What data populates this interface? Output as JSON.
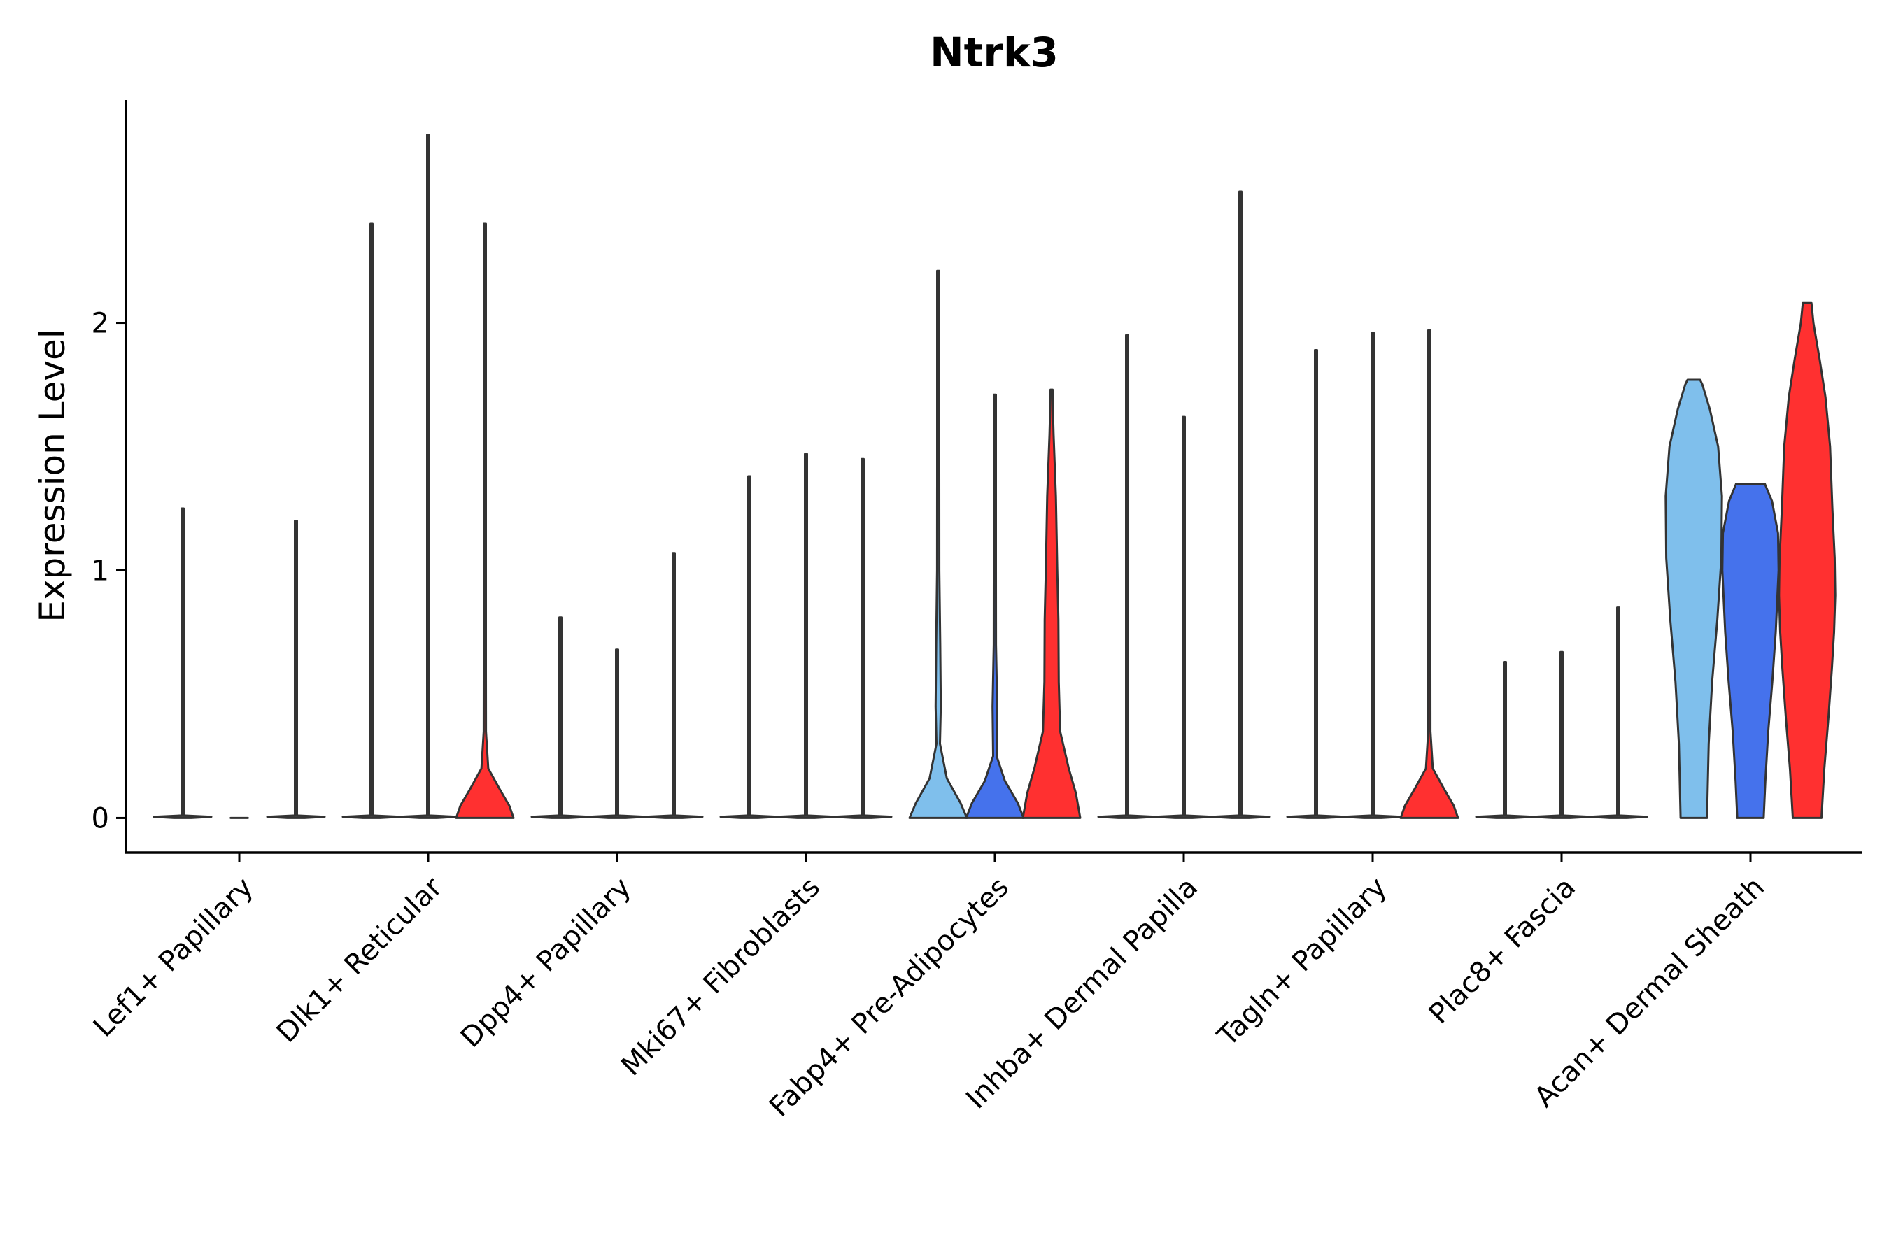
{
  "chart_data": {
    "type": "violin",
    "title": "Ntrk3",
    "xlabel": "",
    "ylabel": "Expression Level",
    "ylim": [
      -0.14,
      2.9
    ],
    "yticks": [
      0,
      1,
      2
    ],
    "ytick_labels": [
      "0",
      "1",
      "2"
    ],
    "categories": [
      "Lef1+ Papillary",
      "Dlk1+ Reticular",
      "Dpp4+ Papillary",
      "Mki67+ Fibroblasts",
      "Fabp4+ Pre-Adipocytes",
      "Inhba+ Dermal Papilla",
      "Tagln+ Papillary",
      "Plac8+ Fascia",
      "Acan+ Dermal Sheath"
    ],
    "series_colors": [
      "#7fbfec",
      "#4572ec",
      "#ff3030"
    ],
    "series": [
      {
        "name": "group-1",
        "color": "#7fbfec",
        "max_values": [
          1.25,
          2.4,
          0.81,
          1.38,
          2.21,
          1.95,
          1.89,
          0.63,
          1.77
        ]
      },
      {
        "name": "group-2",
        "color": "#4572ec",
        "max_values": [
          0.0,
          2.76,
          0.68,
          1.47,
          1.71,
          1.62,
          1.96,
          0.67,
          1.35
        ]
      },
      {
        "name": "group-3",
        "color": "#ff3030",
        "max_values": [
          1.2,
          2.4,
          1.07,
          1.45,
          1.73,
          2.53,
          1.97,
          0.85,
          2.08
        ]
      }
    ]
  }
}
